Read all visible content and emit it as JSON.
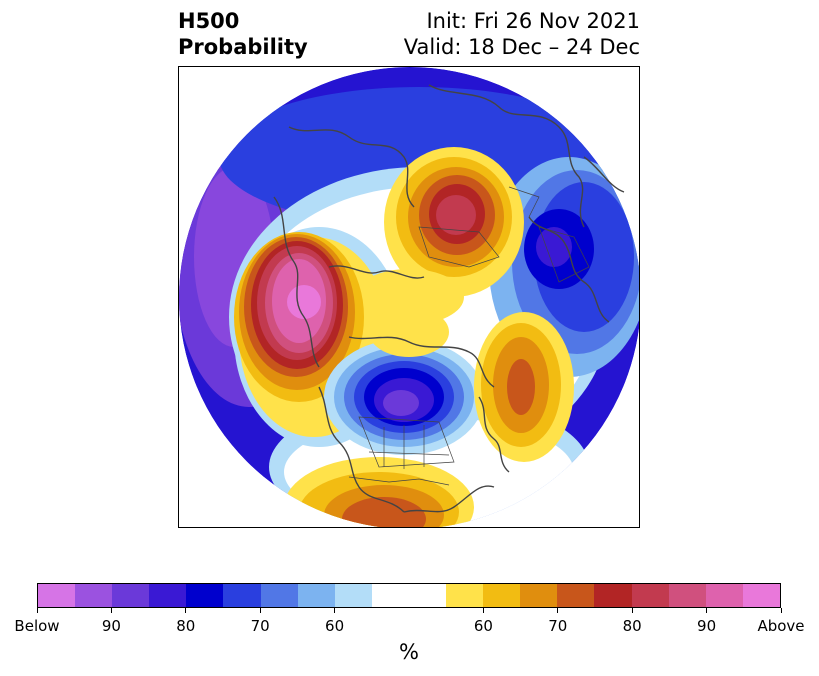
{
  "title": {
    "left_line1": "H500",
    "left_line2": "Probability",
    "right_line1": "Init: Fri 26 Nov 2021",
    "right_line2": "Valid: 18 Dec – 24 Dec"
  },
  "map": {
    "projection": "north-polar-stereographic",
    "features": [
      {
        "name": "below-normal-center",
        "region": "western Canada / Hudson Bay",
        "max_probability": "Below 90"
      },
      {
        "name": "above-normal-center",
        "region": "north Pacific / Alaska",
        "max_probability": "Above 90"
      },
      {
        "name": "above-normal-center",
        "region": "north-central Siberia",
        "max_probability": "80"
      },
      {
        "name": "below-normal-center",
        "region": "Europe / Scandinavia",
        "max_probability": "80"
      },
      {
        "name": "above-normal-center",
        "region": "north Atlantic",
        "max_probability": "70"
      },
      {
        "name": "above-normal-center",
        "region": "southern United States",
        "max_probability": "70"
      }
    ]
  },
  "colorbar": {
    "colors": [
      "#d674e6",
      "#9b52e0",
      "#6b39d9",
      "#3a19d4",
      "#0000cd",
      "#2a3fdf",
      "#5177e6",
      "#7cb3f0",
      "#b3ddf8",
      "#ffffff",
      "#ffffff",
      "#ffe24a",
      "#f2bc12",
      "#e08e0e",
      "#c8561b",
      "#b22525",
      "#c23a4f",
      "#d0507e",
      "#de62ad",
      "#e978da"
    ],
    "tick_labels": [
      "Below",
      "90",
      "80",
      "70",
      "60",
      "60",
      "70",
      "80",
      "90",
      "Above"
    ],
    "unit": "%"
  }
}
